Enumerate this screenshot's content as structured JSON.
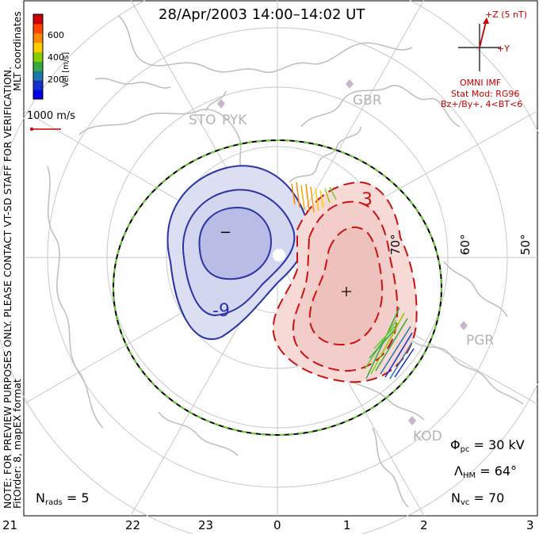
{
  "title": "28/Apr/2003 14:00–14:02 UT",
  "preview_note": "NOTE: FOR PREVIEW PURPOSES ONLY. PLEASE CONTACT VT-SD STAFF FOR VERIFICATION.",
  "fit_note": "FitOrder: 8, mapEX format",
  "coordinates": "MLT coordinates",
  "colorbar": {
    "label": "Vel [m/s]",
    "ticks": [
      "600",
      "400",
      "200"
    ],
    "colors": [
      "#cc0000",
      "#ff4400",
      "#ff8800",
      "#ffcc00",
      "#88cc00",
      "#33aa44",
      "#2277aa",
      "#1133cc",
      "#0000ee"
    ]
  },
  "velocity_scale": "1000 m/s",
  "imf": {
    "z_label": "+Z (5 nT)",
    "y_label": "+Y",
    "source": "OMNI IMF",
    "stat_model": "Stat Mod: RG96",
    "conditions": "Bz+/By+, 4<BT<6"
  },
  "stations": [
    "GBR",
    "STO",
    "PYK",
    "PGR",
    "KOD"
  ],
  "latitude_labels": [
    "70°",
    "60°",
    "50°"
  ],
  "contour_labels": [
    "-9",
    "3",
    "−",
    "+"
  ],
  "stats": {
    "n_rads_label": "N",
    "n_rads_sub": "rads",
    "n_rads_value": "= 5",
    "phi_label": "Φ",
    "phi_sub": "pc",
    "phi_value": "= 30 kV",
    "lambda_label": "Λ",
    "lambda_sub": "HM",
    "lambda_value": "= 64°",
    "nvc_label": "N",
    "nvc_sub": "vc",
    "nvc_value": "= 70"
  },
  "mlt_hours": [
    "21",
    "22",
    "23",
    "0",
    "1",
    "2",
    "3"
  ],
  "colors": {
    "negative_cell": "#2a33a8",
    "positive_cell": "#cc1111",
    "boundary": "#66cc33",
    "coast": "#c0c0c0"
  }
}
